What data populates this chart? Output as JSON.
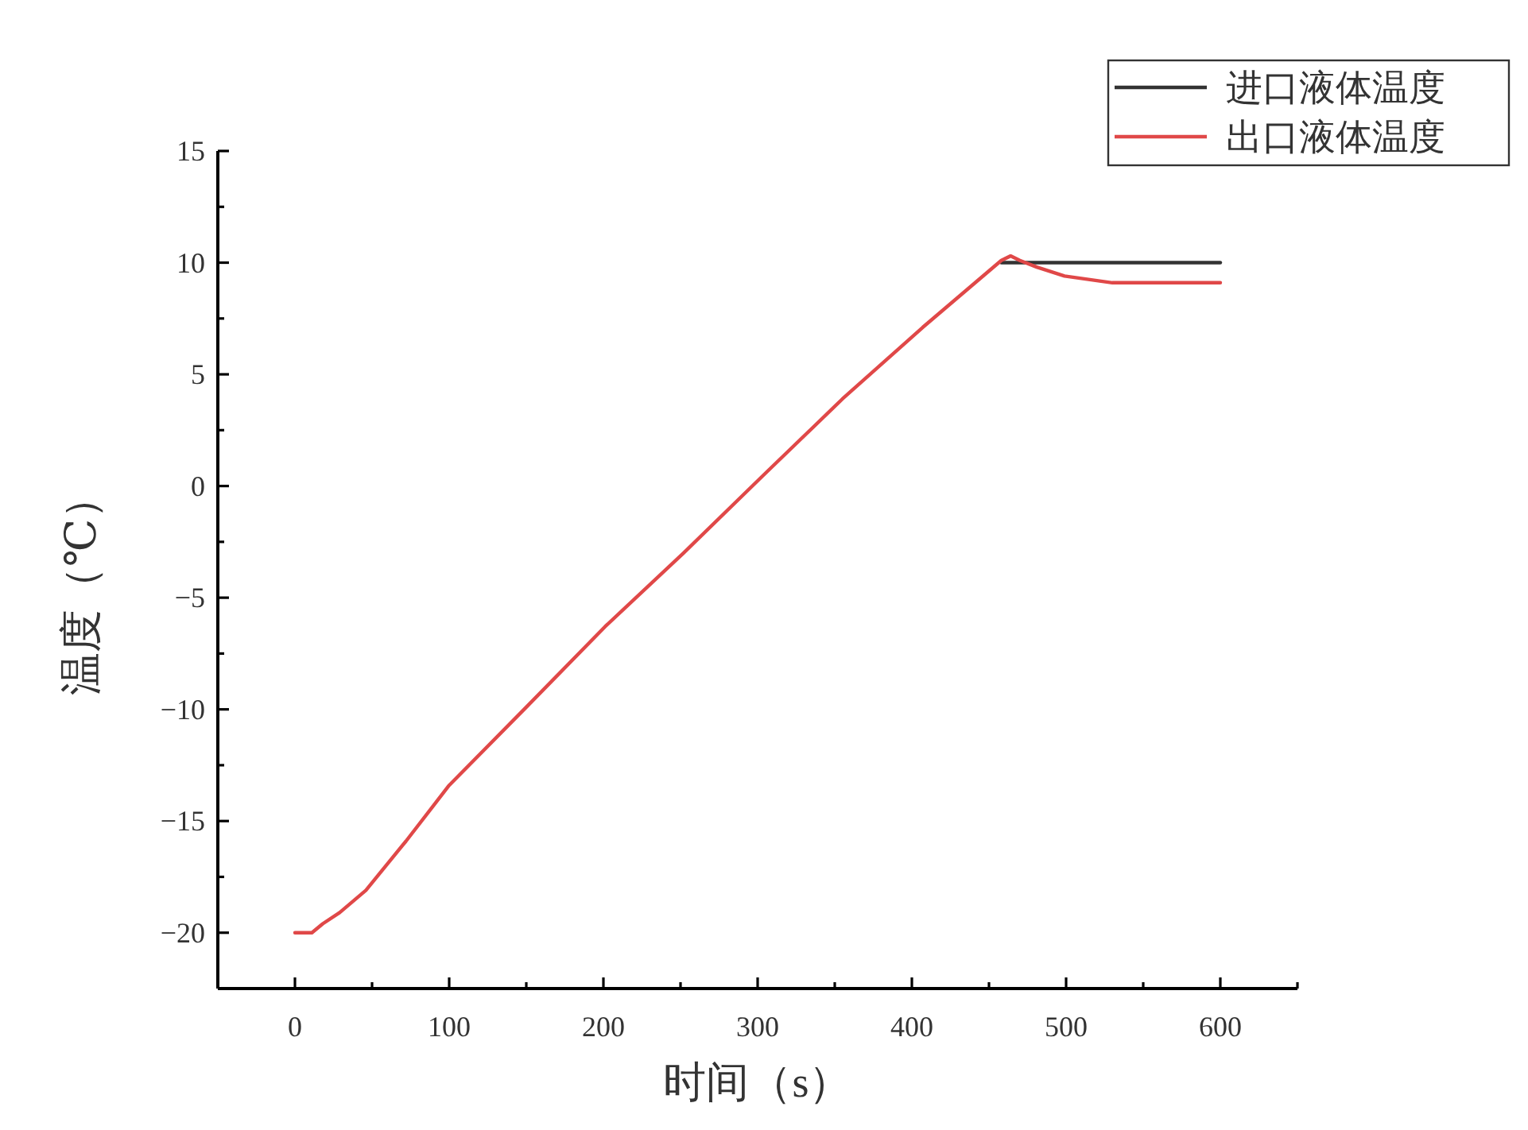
{
  "chart_data": {
    "type": "line",
    "xlabel": "时间（s）",
    "ylabel": "温度（℃）",
    "xlim": [
      -50,
      650
    ],
    "xticks": [
      0,
      {
        "value": 50,
        "label": null
      },
      100,
      {
        "value": 150,
        "label": null
      },
      200,
      {
        "value": 250,
        "label": null
      },
      300,
      {
        "value": 350,
        "label": null
      },
      400,
      {
        "value": 450,
        "label": null
      },
      500,
      {
        "value": 550,
        "label": null
      },
      600,
      {
        "value": 650,
        "label": null
      }
    ],
    "ylim": [
      -22.5,
      15
    ],
    "yticks": [
      {
        "value": -22.5,
        "label": null
      },
      -20,
      {
        "value": -17.5,
        "label": null
      },
      -15,
      {
        "value": -12.5,
        "label": null
      },
      -10,
      {
        "value": -7.5,
        "label": null
      },
      -5,
      {
        "value": -2.5,
        "label": null
      },
      0,
      {
        "value": 2.5,
        "label": null
      },
      5,
      {
        "value": 7.5,
        "label": null
      },
      10,
      {
        "value": 12.5,
        "label": null
      },
      15
    ],
    "legend": "top right",
    "line_style": "solid",
    "series": [
      {
        "name": "进口液体温度",
        "color": "#333333",
        "x": [
          458,
          600
        ],
        "values": [
          10,
          10
        ]
      },
      {
        "name": "出口液体温度",
        "color": "#e04848",
        "x": [
          0,
          11,
          18,
          29,
          46,
          72,
          100,
          150,
          201,
          252,
          304,
          355,
          407,
          458,
          464,
          470,
          481,
          499,
          530,
          572,
          600
        ],
        "values": [
          -20,
          -20,
          -19.6,
          -19.1,
          -18.1,
          -15.9,
          -13.4,
          -9.9,
          -6.3,
          -3.0,
          0.5,
          3.9,
          7.1,
          10.1,
          10.3,
          10.1,
          9.8,
          9.4,
          9.1,
          9.1,
          9.1
        ]
      }
    ]
  }
}
